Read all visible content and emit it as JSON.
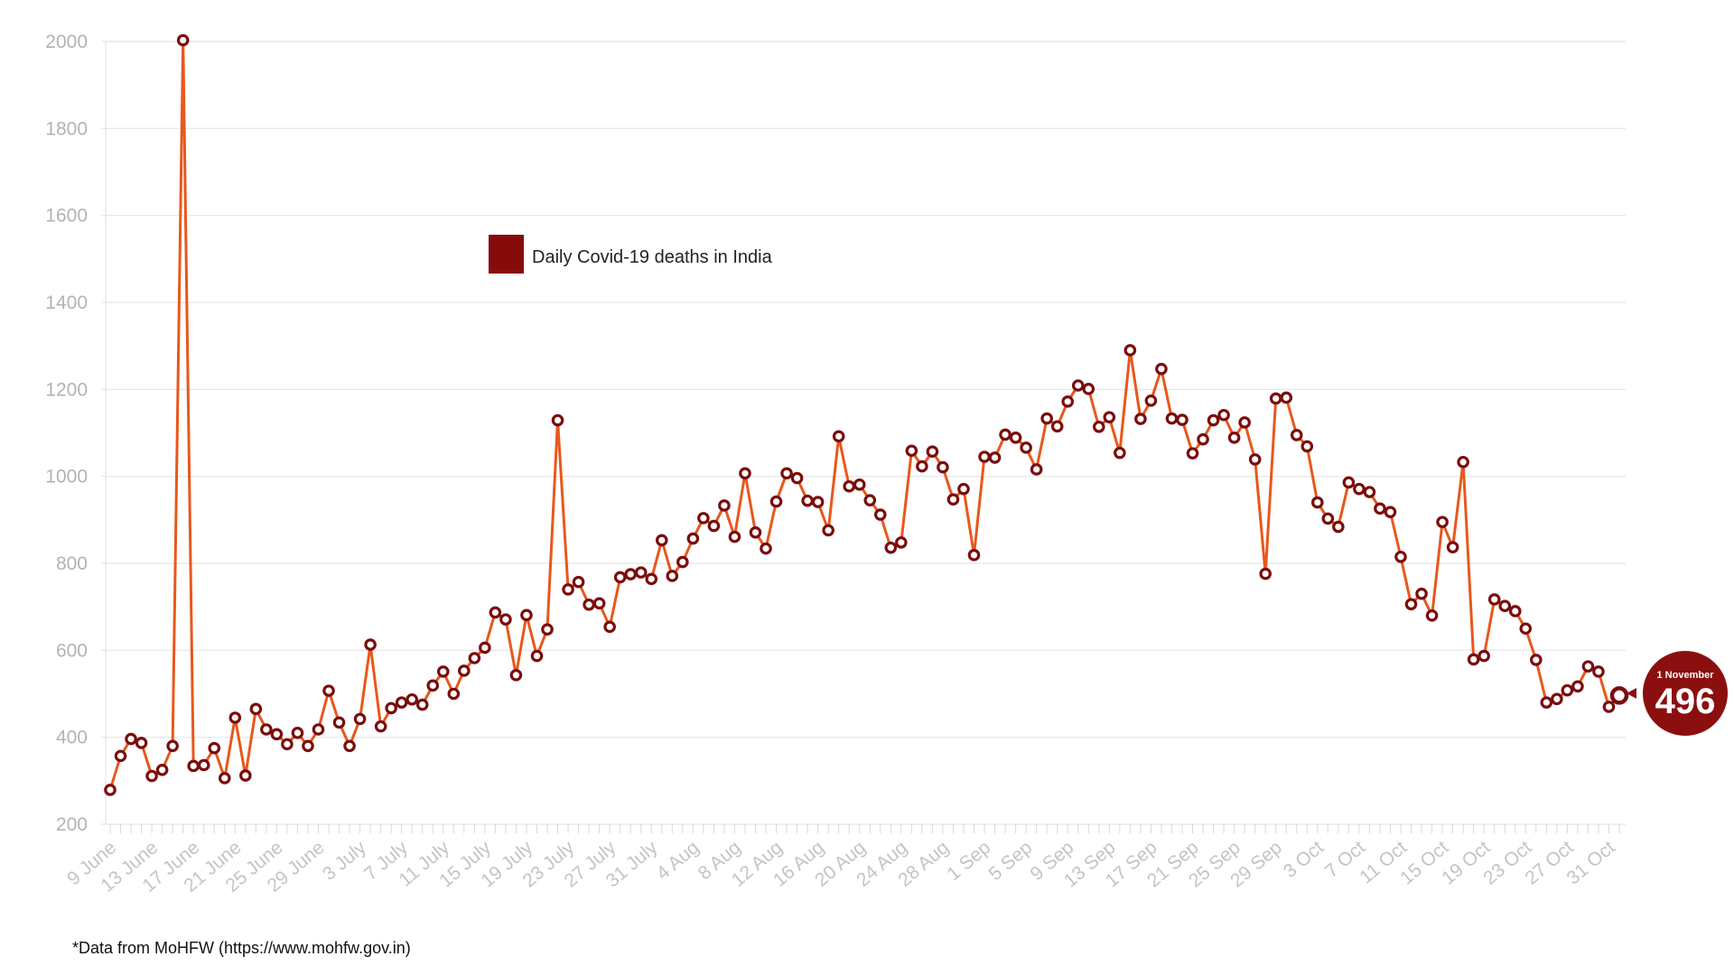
{
  "chart_data": {
    "type": "line",
    "series": [
      {
        "name": "Daily Covid-19 deaths in India",
        "color": "#e8581c",
        "marker_color": "#7a0d0d",
        "x": [
          "9 June",
          "10 June",
          "11 June",
          "12 June",
          "13 June",
          "14 June",
          "15 June",
          "16 June",
          "17 June",
          "18 June",
          "19 June",
          "20 June",
          "21 June",
          "22 June",
          "23 June",
          "24 June",
          "25 June",
          "26 June",
          "27 June",
          "28 June",
          "29 June",
          "30 June",
          "1 July",
          "2 July",
          "3 July",
          "4 July",
          "5 July",
          "6 July",
          "7 July",
          "8 July",
          "9 July",
          "10 July",
          "11 July",
          "12 July",
          "13 July",
          "14 July",
          "15 July",
          "16 July",
          "17 July",
          "18 July",
          "19 July",
          "20 July",
          "21 July",
          "22 July",
          "23 July",
          "24 July",
          "25 July",
          "26 July",
          "27 July",
          "28 July",
          "29 July",
          "30 July",
          "31 July",
          "1 Aug",
          "2 Aug",
          "3 Aug",
          "4 Aug",
          "5 Aug",
          "6 Aug",
          "7 Aug",
          "8 Aug",
          "9 Aug",
          "10 Aug",
          "11 Aug",
          "12 Aug",
          "13 Aug",
          "14 Aug",
          "15 Aug",
          "16 Aug",
          "17 Aug",
          "18 Aug",
          "19 Aug",
          "20 Aug",
          "21 Aug",
          "22 Aug",
          "23 Aug",
          "24 Aug",
          "25 Aug",
          "26 Aug",
          "27 Aug",
          "28 Aug",
          "29 Aug",
          "30 Aug",
          "31 Aug",
          "1 Sep",
          "2 Sep",
          "3 Sep",
          "4 Sep",
          "5 Sep",
          "6 Sep",
          "7 Sep",
          "8 Sep",
          "9 Sep",
          "10 Sep",
          "11 Sep",
          "12 Sep",
          "13 Sep",
          "14 Sep",
          "15 Sep",
          "16 Sep",
          "17 Sep",
          "18 Sep",
          "19 Sep",
          "20 Sep",
          "21 Sep",
          "22 Sep",
          "23 Sep",
          "24 Sep",
          "25 Sep",
          "26 Sep",
          "27 Sep",
          "28 Sep",
          "29 Sep",
          "30 Sep",
          "1 Oct",
          "2 Oct",
          "3 Oct",
          "4 Oct",
          "5 Oct",
          "6 Oct",
          "7 Oct",
          "8 Oct",
          "9 Oct",
          "10 Oct",
          "11 Oct",
          "12 Oct",
          "13 Oct",
          "14 Oct",
          "15 Oct",
          "16 Oct",
          "17 Oct",
          "18 Oct",
          "19 Oct",
          "20 Oct",
          "21 Oct",
          "22 Oct",
          "23 Oct",
          "24 Oct",
          "25 Oct",
          "26 Oct",
          "27 Oct",
          "28 Oct",
          "29 Oct",
          "30 Oct",
          "31 Oct",
          "1 November"
        ],
        "values": [
          279,
          357,
          396,
          387,
          311,
          325,
          380,
          2003,
          334,
          336,
          375,
          306,
          445,
          312,
          465,
          418,
          407,
          384,
          410,
          380,
          418,
          507,
          434,
          380,
          442,
          613,
          425,
          467,
          480,
          487,
          475,
          519,
          551,
          500,
          553,
          582,
          606,
          687,
          671,
          543,
          681,
          587,
          648,
          1129,
          740,
          757,
          705,
          708,
          654,
          768,
          775,
          779,
          764,
          853,
          771,
          803,
          857,
          904,
          886,
          933,
          861,
          1007,
          871,
          834,
          942,
          1007,
          996,
          944,
          941,
          876,
          1092,
          977,
          981,
          945,
          912,
          836,
          848,
          1059,
          1023,
          1057,
          1021,
          947,
          971,
          819,
          1045,
          1043,
          1096,
          1089,
          1066,
          1016,
          1133,
          1115,
          1172,
          1209,
          1201,
          1114,
          1136,
          1054,
          1290,
          1132,
          1174,
          1247,
          1133,
          1130,
          1053,
          1085,
          1129,
          1141,
          1089,
          1124,
          1039,
          776,
          1179,
          1181,
          1095,
          1069,
          940,
          903,
          884,
          986,
          971,
          964,
          926,
          918,
          815,
          706,
          730,
          680,
          895,
          837,
          1033,
          579,
          587,
          717,
          702,
          690,
          650,
          578,
          480,
          488,
          508,
          517,
          563,
          551,
          470,
          496
        ]
      }
    ],
    "ylim": [
      200,
      2000
    ],
    "yticks": [
      "200",
      "400",
      "600",
      "800",
      "1000",
      "1200",
      "1400",
      "1600",
      "1800",
      "2000"
    ],
    "xtick_labels": [
      "9 June",
      "13 June",
      "17 June",
      "21 June",
      "25 June",
      "29 June",
      "3 July",
      "7 July",
      "11 July",
      "15 July",
      "19 July",
      "23 July",
      "27 July",
      "31 July",
      "4 Aug",
      "8 Aug",
      "12 Aug",
      "16 Aug",
      "20 Aug",
      "24 Aug",
      "28 Aug",
      "1 Sep",
      "5 Sep",
      "9 Sep",
      "13 Sep",
      "17 Sep",
      "21 Sep",
      "25 Sep",
      "29 Sep",
      "3 Oct",
      "7 Oct",
      "11 Oct",
      "15 Oct",
      "19 Oct",
      "23 Oct",
      "27 Oct",
      "31 Oct"
    ],
    "grid": true,
    "legend_placement": "top-center",
    "callout": {
      "date_label": "1 November",
      "value_label": "496",
      "color": "#8b0f0f"
    }
  },
  "footnote": "*Data from MoHFW (https://www.mohfw.gov.in)"
}
